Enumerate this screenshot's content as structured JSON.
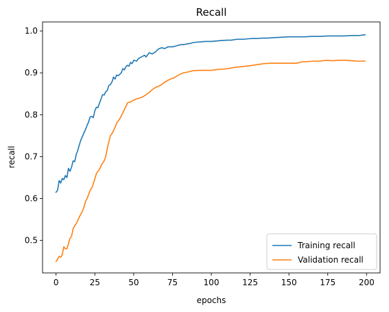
{
  "chart_data": {
    "type": "line",
    "title": "Recall",
    "xlabel": "epochs",
    "ylabel": "recall",
    "xlim": [
      -8.7,
      208.7
    ],
    "ylim": [
      0.4225,
      1.0215
    ],
    "xticks": [
      0,
      25,
      50,
      75,
      100,
      125,
      150,
      175,
      200
    ],
    "yticks": [
      0.5,
      0.6,
      0.7,
      0.8,
      0.9,
      1.0
    ],
    "ytick_labels": [
      "0.5",
      "0.6",
      "0.7",
      "0.8",
      "0.9",
      "1.0"
    ],
    "grid": false,
    "legend_position": "lower-right",
    "series": [
      {
        "name": "Training recall",
        "color": "#1f77b4",
        "points": [
          [
            0,
            0.615
          ],
          [
            1,
            0.62
          ],
          [
            2,
            0.643
          ],
          [
            3,
            0.637
          ],
          [
            4,
            0.648
          ],
          [
            5,
            0.645
          ],
          [
            6,
            0.655
          ],
          [
            7,
            0.65
          ],
          [
            8,
            0.672
          ],
          [
            9,
            0.665
          ],
          [
            10,
            0.675
          ],
          [
            11,
            0.69
          ],
          [
            12,
            0.688
          ],
          [
            13,
            0.705
          ],
          [
            14,
            0.715
          ],
          [
            15,
            0.728
          ],
          [
            16,
            0.74
          ],
          [
            17,
            0.748
          ],
          [
            18,
            0.757
          ],
          [
            19,
            0.765
          ],
          [
            20,
            0.775
          ],
          [
            21,
            0.783
          ],
          [
            22,
            0.795
          ],
          [
            23,
            0.796
          ],
          [
            24,
            0.793
          ],
          [
            25,
            0.81
          ],
          [
            26,
            0.818
          ],
          [
            27,
            0.817
          ],
          [
            28,
            0.828
          ],
          [
            29,
            0.838
          ],
          [
            30,
            0.848
          ],
          [
            31,
            0.847
          ],
          [
            32,
            0.855
          ],
          [
            33,
            0.858
          ],
          [
            34,
            0.87
          ],
          [
            35,
            0.872
          ],
          [
            36,
            0.878
          ],
          [
            37,
            0.89
          ],
          [
            38,
            0.885
          ],
          [
            39,
            0.895
          ],
          [
            40,
            0.893
          ],
          [
            42,
            0.9
          ],
          [
            43,
            0.91
          ],
          [
            44,
            0.907
          ],
          [
            45,
            0.915
          ],
          [
            46,
            0.918
          ],
          [
            47,
            0.916
          ],
          [
            48,
            0.925
          ],
          [
            49,
            0.922
          ],
          [
            50,
            0.93
          ],
          [
            52,
            0.928
          ],
          [
            53,
            0.934
          ],
          [
            55,
            0.938
          ],
          [
            57,
            0.942
          ],
          [
            58,
            0.938
          ],
          [
            60,
            0.948
          ],
          [
            62,
            0.945
          ],
          [
            64,
            0.95
          ],
          [
            66,
            0.957
          ],
          [
            68,
            0.96
          ],
          [
            70,
            0.958
          ],
          [
            72,
            0.962
          ],
          [
            75,
            0.962
          ],
          [
            78,
            0.965
          ],
          [
            80,
            0.967
          ],
          [
            83,
            0.968
          ],
          [
            86,
            0.97
          ],
          [
            88,
            0.972
          ],
          [
            90,
            0.973
          ],
          [
            93,
            0.974
          ],
          [
            96,
            0.975
          ],
          [
            100,
            0.975
          ],
          [
            103,
            0.976
          ],
          [
            106,
            0.977
          ],
          [
            110,
            0.978
          ],
          [
            113,
            0.978
          ],
          [
            116,
            0.98
          ],
          [
            120,
            0.98
          ],
          [
            123,
            0.981
          ],
          [
            126,
            0.982
          ],
          [
            130,
            0.982
          ],
          [
            133,
            0.983
          ],
          [
            136,
            0.983
          ],
          [
            140,
            0.984
          ],
          [
            145,
            0.985
          ],
          [
            150,
            0.986
          ],
          [
            155,
            0.986
          ],
          [
            160,
            0.986
          ],
          [
            165,
            0.987
          ],
          [
            170,
            0.987
          ],
          [
            175,
            0.988
          ],
          [
            180,
            0.988
          ],
          [
            185,
            0.988
          ],
          [
            190,
            0.989
          ],
          [
            195,
            0.989
          ],
          [
            199,
            0.991
          ]
        ]
      },
      {
        "name": "Validation recall",
        "color": "#ff7f0e",
        "points": [
          [
            0,
            0.45
          ],
          [
            1,
            0.455
          ],
          [
            2,
            0.462
          ],
          [
            3,
            0.46
          ],
          [
            4,
            0.466
          ],
          [
            5,
            0.485
          ],
          [
            6,
            0.48
          ],
          [
            7,
            0.48
          ],
          [
            8,
            0.492
          ],
          [
            9,
            0.505
          ],
          [
            10,
            0.51
          ],
          [
            11,
            0.528
          ],
          [
            12,
            0.535
          ],
          [
            13,
            0.54
          ],
          [
            14,
            0.548
          ],
          [
            15,
            0.556
          ],
          [
            16,
            0.563
          ],
          [
            17,
            0.57
          ],
          [
            18,
            0.58
          ],
          [
            19,
            0.593
          ],
          [
            20,
            0.6
          ],
          [
            21,
            0.61
          ],
          [
            22,
            0.62
          ],
          [
            23,
            0.625
          ],
          [
            24,
            0.635
          ],
          [
            25,
            0.647
          ],
          [
            26,
            0.66
          ],
          [
            27,
            0.665
          ],
          [
            28,
            0.67
          ],
          [
            29,
            0.678
          ],
          [
            30,
            0.685
          ],
          [
            31,
            0.69
          ],
          [
            32,
            0.7
          ],
          [
            33,
            0.72
          ],
          [
            34,
            0.735
          ],
          [
            35,
            0.75
          ],
          [
            36,
            0.755
          ],
          [
            37,
            0.762
          ],
          [
            38,
            0.77
          ],
          [
            39,
            0.78
          ],
          [
            40,
            0.785
          ],
          [
            41,
            0.79
          ],
          [
            42,
            0.797
          ],
          [
            43,
            0.805
          ],
          [
            44,
            0.812
          ],
          [
            45,
            0.82
          ],
          [
            46,
            0.828
          ],
          [
            47,
            0.83
          ],
          [
            48,
            0.83
          ],
          [
            50,
            0.835
          ],
          [
            52,
            0.838
          ],
          [
            54,
            0.84
          ],
          [
            56,
            0.843
          ],
          [
            58,
            0.848
          ],
          [
            60,
            0.853
          ],
          [
            62,
            0.86
          ],
          [
            64,
            0.865
          ],
          [
            66,
            0.868
          ],
          [
            68,
            0.872
          ],
          [
            70,
            0.878
          ],
          [
            72,
            0.882
          ],
          [
            74,
            0.886
          ],
          [
            76,
            0.888
          ],
          [
            78,
            0.893
          ],
          [
            80,
            0.897
          ],
          [
            82,
            0.9
          ],
          [
            85,
            0.902
          ],
          [
            88,
            0.905
          ],
          [
            92,
            0.906
          ],
          [
            96,
            0.906
          ],
          [
            100,
            0.906
          ],
          [
            104,
            0.908
          ],
          [
            108,
            0.909
          ],
          [
            112,
            0.911
          ],
          [
            115,
            0.913
          ],
          [
            120,
            0.915
          ],
          [
            125,
            0.917
          ],
          [
            130,
            0.92
          ],
          [
            134,
            0.922
          ],
          [
            138,
            0.923
          ],
          [
            142,
            0.923
          ],
          [
            146,
            0.923
          ],
          [
            150,
            0.923
          ],
          [
            155,
            0.923
          ],
          [
            158,
            0.926
          ],
          [
            162,
            0.927
          ],
          [
            166,
            0.928
          ],
          [
            170,
            0.928
          ],
          [
            174,
            0.93
          ],
          [
            178,
            0.929
          ],
          [
            182,
            0.93
          ],
          [
            186,
            0.93
          ],
          [
            190,
            0.929
          ],
          [
            194,
            0.928
          ],
          [
            199,
            0.928
          ]
        ]
      }
    ]
  }
}
